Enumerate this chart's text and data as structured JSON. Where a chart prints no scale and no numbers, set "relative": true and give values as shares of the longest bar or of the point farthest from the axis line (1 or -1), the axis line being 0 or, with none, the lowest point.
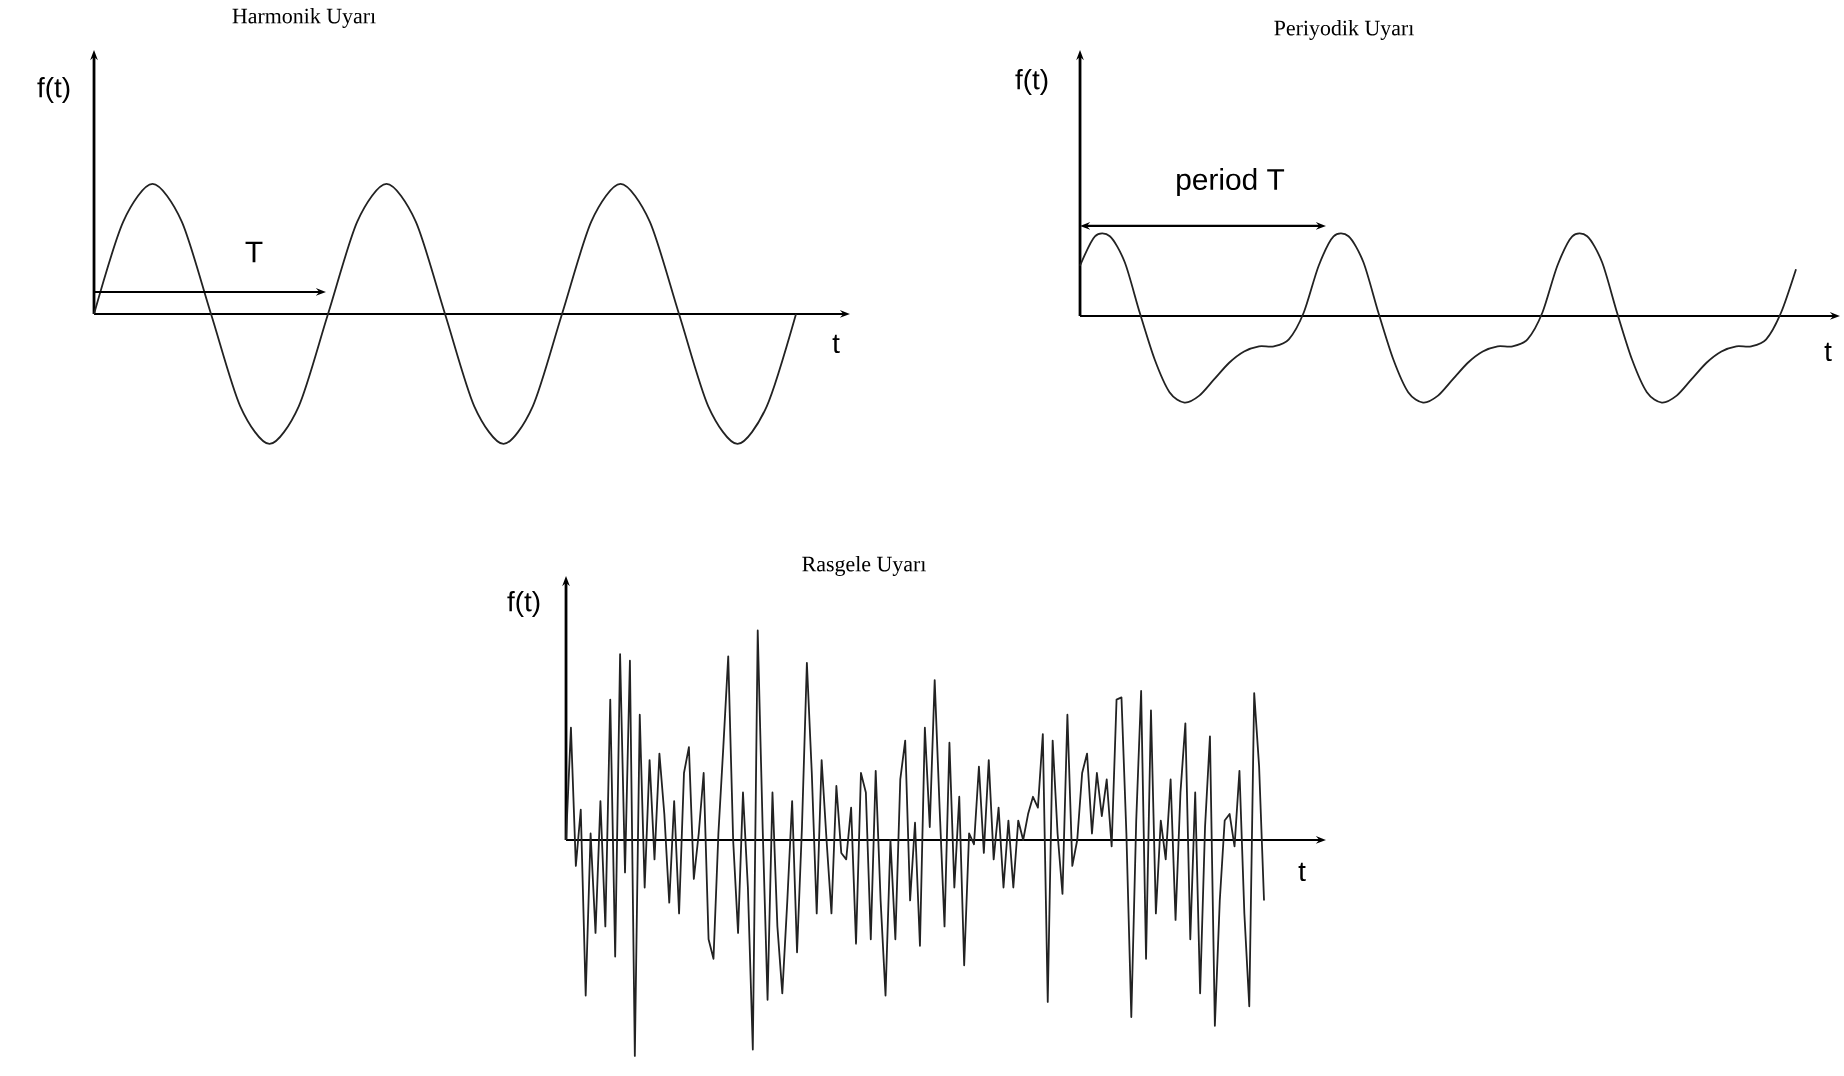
{
  "chart_data": [
    {
      "type": "line",
      "title": "Harmonik Uyarı",
      "xlabel": "t",
      "ylabel": "f(t)",
      "relative": true,
      "color": "#222222",
      "annotations": [
        "T"
      ],
      "categories": [
        null,
        null,
        null,
        null,
        null,
        null,
        null,
        null,
        null,
        null,
        null,
        null,
        null,
        null,
        null,
        null,
        null,
        null,
        null,
        null,
        null,
        null,
        null,
        null,
        null
      ],
      "values": [
        0,
        0.71,
        1,
        0.71,
        0,
        -0.71,
        -1,
        -0.71,
        0,
        0.71,
        1,
        0.71,
        0,
        -0.71,
        -1,
        -0.71,
        0,
        0.71,
        1,
        0.71,
        0,
        -0.71,
        -1,
        -0.71,
        0
      ]
    },
    {
      "type": "line",
      "title": "Periyodik Uyarı",
      "xlabel": "t",
      "ylabel": "f(t)",
      "relative": true,
      "color": "#222222",
      "annotations": [
        "period T"
      ],
      "categories": [
        null,
        null,
        null,
        null,
        null,
        null,
        null,
        null,
        null,
        null,
        null,
        null,
        null,
        null,
        null,
        null,
        null,
        null,
        null,
        null,
        null,
        null,
        null,
        null,
        null,
        null,
        null,
        null,
        null,
        null,
        null,
        null,
        null,
        null,
        null,
        null,
        null,
        null,
        null,
        null,
        null,
        null,
        null,
        null,
        null,
        null,
        null,
        null,
        null
      ],
      "values": [
        0.58,
        0.92,
        0.92,
        0.62,
        0.04,
        -0.5,
        -0.88,
        -1,
        -0.92,
        -0.73,
        -0.54,
        -0.41,
        -0.35,
        -0.35,
        -0.27,
        0.04,
        0.58,
        0.92,
        0.92,
        0.62,
        0.04,
        -0.5,
        -0.88,
        -1,
        -0.92,
        -0.73,
        -0.54,
        -0.41,
        -0.35,
        -0.35,
        -0.27,
        0.04,
        0.58,
        0.92,
        0.92,
        0.62,
        0.04,
        -0.5,
        -0.88,
        -1,
        -0.92,
        -0.73,
        -0.54,
        -0.41,
        -0.35,
        -0.35,
        -0.27,
        0.04,
        0.54
      ]
    },
    {
      "type": "line",
      "title": "Rasgele Uyarı",
      "xlabel": "t",
      "ylabel": "f(t)",
      "relative": true,
      "color": "#222222",
      "categories": [
        null,
        null,
        null,
        null,
        null,
        null,
        null,
        null,
        null,
        null,
        null,
        null,
        null,
        null,
        null,
        null,
        null,
        null,
        null,
        null,
        null,
        null,
        null,
        null,
        null,
        null,
        null,
        null,
        null,
        null,
        null,
        null,
        null,
        null,
        null,
        null,
        null,
        null,
        null,
        null,
        null,
        null,
        null,
        null,
        null,
        null,
        null,
        null,
        null,
        null,
        null,
        null,
        null,
        null,
        null,
        null,
        null,
        null,
        null,
        null,
        null,
        null,
        null,
        null,
        null,
        null,
        null,
        null,
        null,
        null,
        null,
        null,
        null,
        null,
        null,
        null,
        null,
        null,
        null,
        null,
        null,
        null,
        null,
        null,
        null,
        null,
        null,
        null,
        null,
        null,
        null,
        null,
        null,
        null,
        null,
        null,
        null,
        null,
        null,
        null,
        null,
        null,
        null,
        null,
        null,
        null,
        null,
        null,
        null,
        null,
        null,
        null,
        null,
        null,
        null,
        null,
        null,
        null,
        null,
        null,
        null,
        null,
        null,
        null,
        null,
        null,
        null,
        null,
        null,
        null,
        null,
        null,
        null,
        null,
        null,
        null,
        null,
        null,
        null,
        null,
        null,
        null,
        null
      ],
      "values": [
        0,
        0.52,
        -0.12,
        0.14,
        -0.72,
        0.03,
        -0.43,
        0.18,
        -0.4,
        0.65,
        -0.54,
        0.86,
        -0.15,
        0.83,
        -1,
        0.58,
        -0.22,
        0.37,
        -0.09,
        0.4,
        0.12,
        -0.29,
        0.18,
        -0.34,
        0.31,
        0.43,
        -0.18,
        0.03,
        0.31,
        -0.46,
        -0.55,
        0.03,
        0.43,
        0.85,
        0,
        -0.43,
        0.22,
        -0.22,
        -0.97,
        0.97,
        0.06,
        -0.74,
        0.22,
        -0.4,
        -0.71,
        -0.29,
        0.18,
        -0.52,
        0.06,
        0.82,
        0.31,
        -0.34,
        0.37,
        0,
        -0.34,
        0.25,
        -0.06,
        -0.09,
        0.15,
        -0.48,
        0.31,
        0.22,
        -0.46,
        0.32,
        -0.28,
        -0.72,
        0,
        -0.46,
        0.28,
        0.46,
        -0.28,
        0.08,
        -0.49,
        0.52,
        0.06,
        0.74,
        0.15,
        -0.4,
        0.45,
        -0.22,
        0.2,
        -0.58,
        0.03,
        -0.02,
        0.34,
        -0.06,
        0.37,
        -0.09,
        0.15,
        -0.22,
        0.09,
        -0.22,
        0.09,
        0,
        0.12,
        0.2,
        0.15,
        0.49,
        -0.75,
        0.46,
        0.03,
        -0.25,
        0.58,
        -0.12,
        0,
        0.31,
        0.4,
        0.03,
        0.31,
        0.11,
        0.28,
        -0.03,
        0.65,
        0.66,
        0.03,
        -0.82,
        0.09,
        0.69,
        -0.55,
        0.6,
        -0.34,
        0.09,
        -0.09,
        0.28,
        -0.37,
        0.22,
        0.54,
        -0.46,
        0.22,
        -0.71,
        0.06,
        0.48,
        -0.86,
        -0.28,
        0.09,
        0.12,
        -0.03,
        0.32,
        -0.34,
        -0.77,
        0.68,
        0.34,
        -0.28
      ]
    }
  ]
}
